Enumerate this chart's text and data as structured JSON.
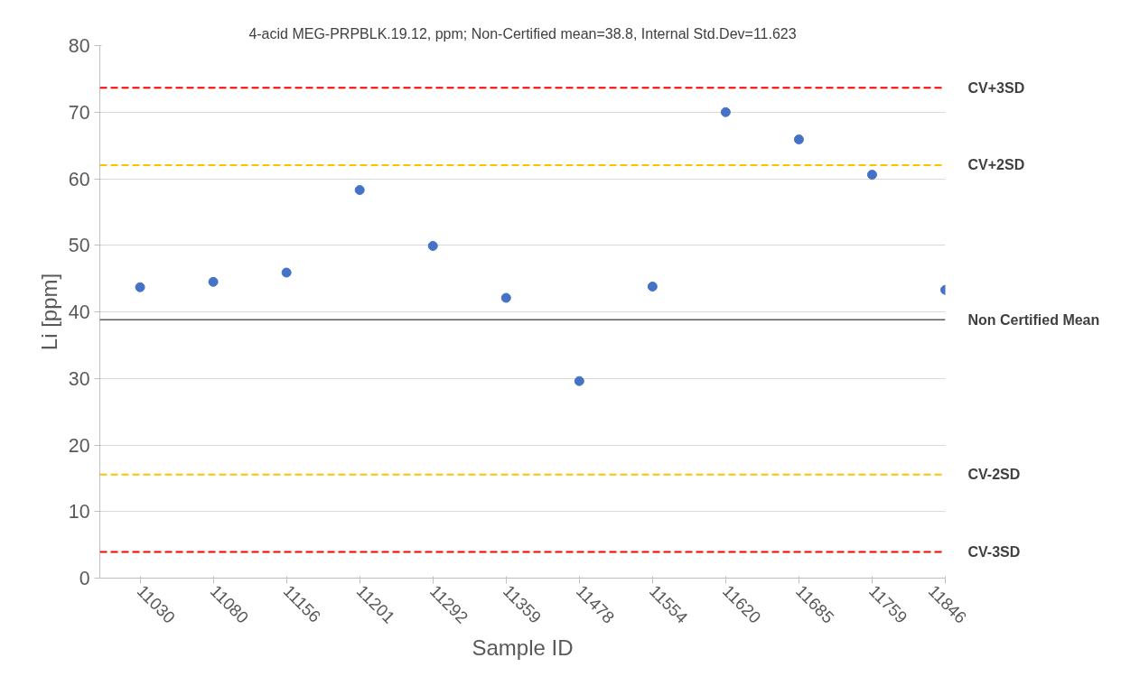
{
  "chart_data": {
    "type": "scatter",
    "title": "4-acid MEG-PRPBLK.19.12, ppm; Non-Certified mean=38.8, Internal Std.Dev=11.623",
    "xlabel": "Sample ID",
    "ylabel": "Li [ppm]",
    "categories": [
      "11030",
      "11080",
      "11156",
      "11201",
      "11292",
      "11359",
      "11478",
      "11554",
      "11620",
      "11685",
      "11759",
      "11846"
    ],
    "values": [
      43.7,
      44.5,
      45.9,
      58.3,
      49.9,
      42.1,
      29.6,
      43.8,
      70.0,
      65.9,
      60.6,
      43.3
    ],
    "color": "#4472c4",
    "marker": "circle",
    "ylim": [
      0,
      80
    ],
    "yticks": [
      0,
      10,
      20,
      30,
      40,
      50,
      60,
      70,
      80
    ],
    "grid": "y",
    "ref_lines": [
      {
        "axis": "y",
        "value": 73.669,
        "label": "CV+3SD",
        "color": "#ff0000",
        "line_style": "dashed"
      },
      {
        "axis": "y",
        "value": 62.046,
        "label": "CV+2SD",
        "color": "#ffc000",
        "line_style": "dashed"
      },
      {
        "axis": "y",
        "value": 38.8,
        "label": "Non Certified Mean",
        "color": "#595959",
        "line_style": "solid"
      },
      {
        "axis": "y",
        "value": 15.554,
        "label": "CV-2SD",
        "color": "#ffc000",
        "line_style": "dashed"
      },
      {
        "axis": "y",
        "value": 3.931,
        "label": "CV-3SD",
        "color": "#ff0000",
        "line_style": "dashed"
      }
    ]
  }
}
